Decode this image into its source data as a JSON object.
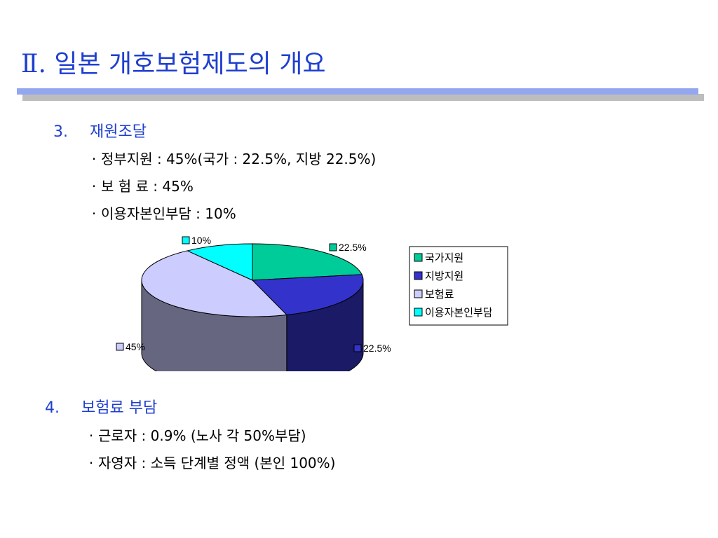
{
  "slide": {
    "title": "Ⅱ. 일본 개호보험제도의 개요",
    "section3": {
      "number": "3.",
      "heading": "재원조달",
      "bullets": [
        "정부지원 : 45%(국가 : 22.5%, 지방 22.5%)",
        "보 험 료 : 45%",
        "이용자본인부담 : 10%"
      ]
    },
    "section4": {
      "number": "4.",
      "heading": "보험료 부담",
      "bullets": [
        "근로자 : 0.9% (노사 각 50%부담)",
        "자영자 : 소득 단계별 정액 (본인 100%)"
      ]
    },
    "bullet_glyph": "·"
  },
  "chart_data": {
    "type": "pie",
    "style": "3d",
    "categories": [
      "국가지원",
      "지방지원",
      "보험료",
      "이용자본인부담"
    ],
    "values": [
      22.5,
      22.5,
      45,
      10
    ],
    "data_labels": [
      "22.5%",
      "22.5%",
      "45%",
      "10%"
    ],
    "colors": [
      "#00cc99",
      "#3333cc",
      "#ccccff",
      "#00ffff"
    ],
    "side_colors": [
      "#007a5c",
      "#1a1a66",
      "#666680",
      "#009999"
    ],
    "legend": {
      "position": "right",
      "entries": [
        "국가지원",
        "지방지원",
        "보험료",
        "이용자본인부담"
      ]
    }
  }
}
